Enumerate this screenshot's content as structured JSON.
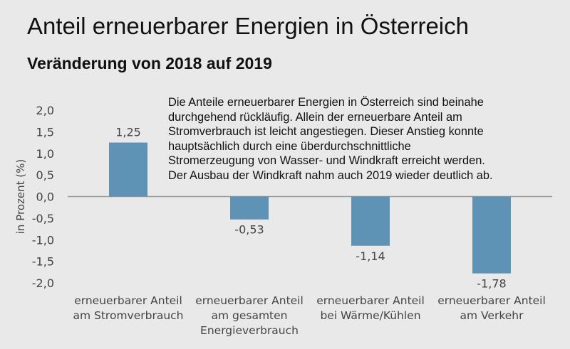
{
  "title": "Anteil erneuerbarer Energien in Österreich",
  "subtitle": "Veränderung von 2018 auf 2019",
  "note_lines": [
    "Die Anteile erneuerbarer Energien in Österreich sind beinahe",
    "durchgehend rückläufig. Allein der erneuerbare Anteil am",
    "Stromverbrauch ist leicht angestiegen. Dieser Anstieg konnte",
    "hauptsächlich durch eine überdurchschnittliche",
    "Stromerzeugung von Wasser- und Windkraft erreicht werden.",
    "Der Ausbau der Windkraft nahm auch 2019 wieder deutlich ab."
  ],
  "colors": {
    "bar": "#5f93b5",
    "axis": "#9a9a9a",
    "background": "#e9e9e9"
  },
  "chart_data": {
    "type": "bar",
    "title": "Anteil erneuerbarer Energien in Österreich",
    "subtitle": "Veränderung von 2018 auf 2019",
    "ylabel": "in Prozent (%)",
    "ylim": [
      -2.0,
      2.0
    ],
    "yticks": [
      2.0,
      1.5,
      1.0,
      0.5,
      0.0,
      -0.5,
      -1.0,
      -1.5,
      -2.0
    ],
    "ytick_labels": [
      "2,0",
      "1,5",
      "1,0",
      "0,5",
      "0,0",
      "-0,5",
      "-1,0",
      "-1,5",
      "-2,0"
    ],
    "grid": false,
    "categories": [
      [
        "erneuerbarer Anteil",
        "am Stromverbrauch"
      ],
      [
        "erneuerbarer Anteil",
        "am gesamten",
        "Energieverbrauch"
      ],
      [
        "erneuerbarer Anteil",
        "bei Wärme/Kühlen"
      ],
      [
        "erneuerbarer Anteil",
        "am Verkehr"
      ]
    ],
    "values": [
      1.25,
      -0.53,
      -1.14,
      -1.78
    ],
    "data_labels": [
      "1,25",
      "-0,53",
      "-1,14",
      "-1,78"
    ]
  }
}
